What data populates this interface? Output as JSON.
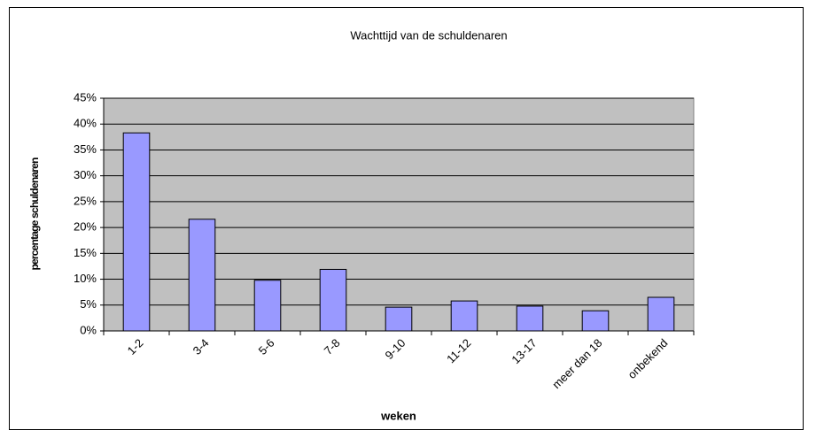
{
  "chart_data": {
    "type": "bar",
    "title": "Wachttijd van de schuldenaren",
    "x_label": "weken",
    "y_label": "percentage schuldenaren",
    "categories": [
      "1-2",
      "3-4",
      "5-6",
      "7-8",
      "9-10",
      "11-12",
      "13-17",
      "meer dan 18",
      "onbekend"
    ],
    "values": [
      38.3,
      21.6,
      9.8,
      11.9,
      4.6,
      5.8,
      4.8,
      3.9,
      6.5
    ],
    "color": "#9999ff",
    "ylim": [
      0,
      45
    ],
    "yticks": [
      {
        "value": 0,
        "label": "0%"
      },
      {
        "value": 5,
        "label": "5%"
      },
      {
        "value": 10,
        "label": "10%"
      },
      {
        "value": 15,
        "label": "15%"
      },
      {
        "value": 20,
        "label": "20%"
      },
      {
        "value": 25,
        "label": "25%"
      },
      {
        "value": 30,
        "label": "30%"
      },
      {
        "value": 35,
        "label": "35%"
      },
      {
        "value": 40,
        "label": "40%"
      },
      {
        "value": 45,
        "label": "45%"
      }
    ],
    "grid": true
  }
}
